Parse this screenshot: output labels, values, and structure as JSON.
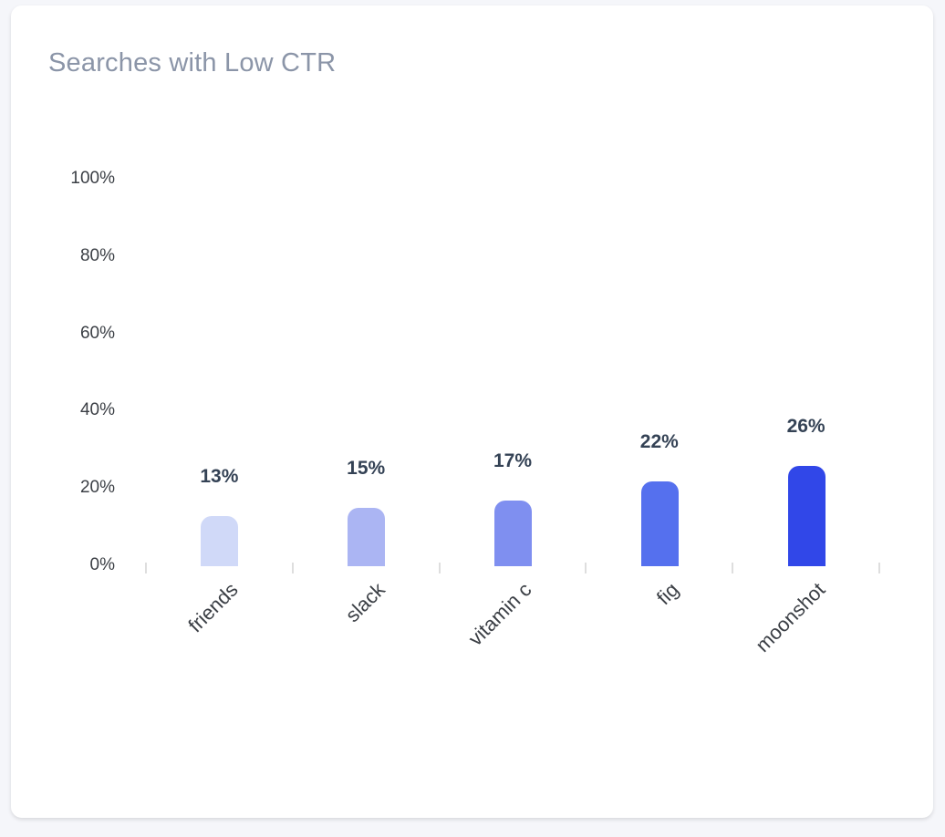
{
  "card": {
    "title": "Searches with Low CTR"
  },
  "chart_data": {
    "type": "bar",
    "title": "Searches with Low CTR",
    "xlabel": "",
    "ylabel": "",
    "categories": [
      "friends",
      "slack",
      "vitamin c",
      "fig",
      "moonshot"
    ],
    "values": [
      13,
      15,
      17,
      22,
      26
    ],
    "value_labels": [
      "13%",
      "15%",
      "17%",
      "22%",
      "26%"
    ],
    "bar_colors": [
      "#d0d9f8",
      "#abb5f3",
      "#7f8ff0",
      "#5570ee",
      "#3147e8"
    ],
    "ylim": [
      0,
      100
    ],
    "yticks": [
      "0%",
      "20%",
      "40%",
      "60%",
      "80%",
      "100%"
    ],
    "grid": false,
    "legend": null,
    "x_label_rotation": -45
  }
}
